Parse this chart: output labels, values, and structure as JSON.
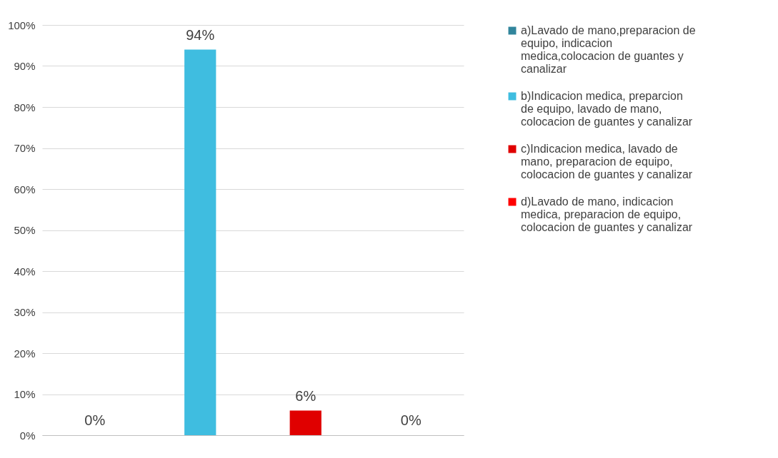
{
  "chart_data": {
    "type": "bar",
    "categories": [
      null,
      null,
      null,
      null
    ],
    "series": [
      {
        "name": "a)Lavado de mano,preparacion de equipo, indicacion medica,colocacion de guantes y canalizar",
        "color": "#31859c",
        "values": [
          0,
          null,
          null,
          null
        ],
        "value_labels": [
          "0%",
          null,
          null,
          null
        ]
      },
      {
        "name": "b)Indicacion medica, preparcion de equipo, lavado de mano, colocacion de guantes y canalizar",
        "color": "#3fbde0",
        "values": [
          null,
          94,
          null,
          null
        ],
        "value_labels": [
          null,
          "94%",
          null,
          null
        ]
      },
      {
        "name": "c)Indicacion medica, lavado de mano, preparacion de equipo, colocacion de guantes y canalizar",
        "color": "#e00000",
        "values": [
          null,
          null,
          6,
          null
        ],
        "value_labels": [
          null,
          null,
          "6%",
          null
        ]
      },
      {
        "name": "d)Lavado de mano, indicacion medica, preparacion de equipo, colocacion de guantes y canalizar",
        "color": "#ff0000",
        "values": [
          null,
          null,
          null,
          0
        ],
        "value_labels": [
          null,
          null,
          null,
          "0%"
        ]
      }
    ],
    "ylim": [
      0,
      100
    ],
    "yticks": [
      {
        "value": 0,
        "label": "0%"
      },
      {
        "value": 10,
        "label": "10%"
      },
      {
        "value": 20,
        "label": "20%"
      },
      {
        "value": 30,
        "label": "30%"
      },
      {
        "value": 40,
        "label": "40%"
      },
      {
        "value": 50,
        "label": "50%"
      },
      {
        "value": 60,
        "label": "60%"
      },
      {
        "value": 70,
        "label": "70%"
      },
      {
        "value": 80,
        "label": "80%"
      },
      {
        "value": 90,
        "label": "90%"
      },
      {
        "value": 100,
        "label": "100%"
      }
    ],
    "grid": "y",
    "legend": "right"
  }
}
